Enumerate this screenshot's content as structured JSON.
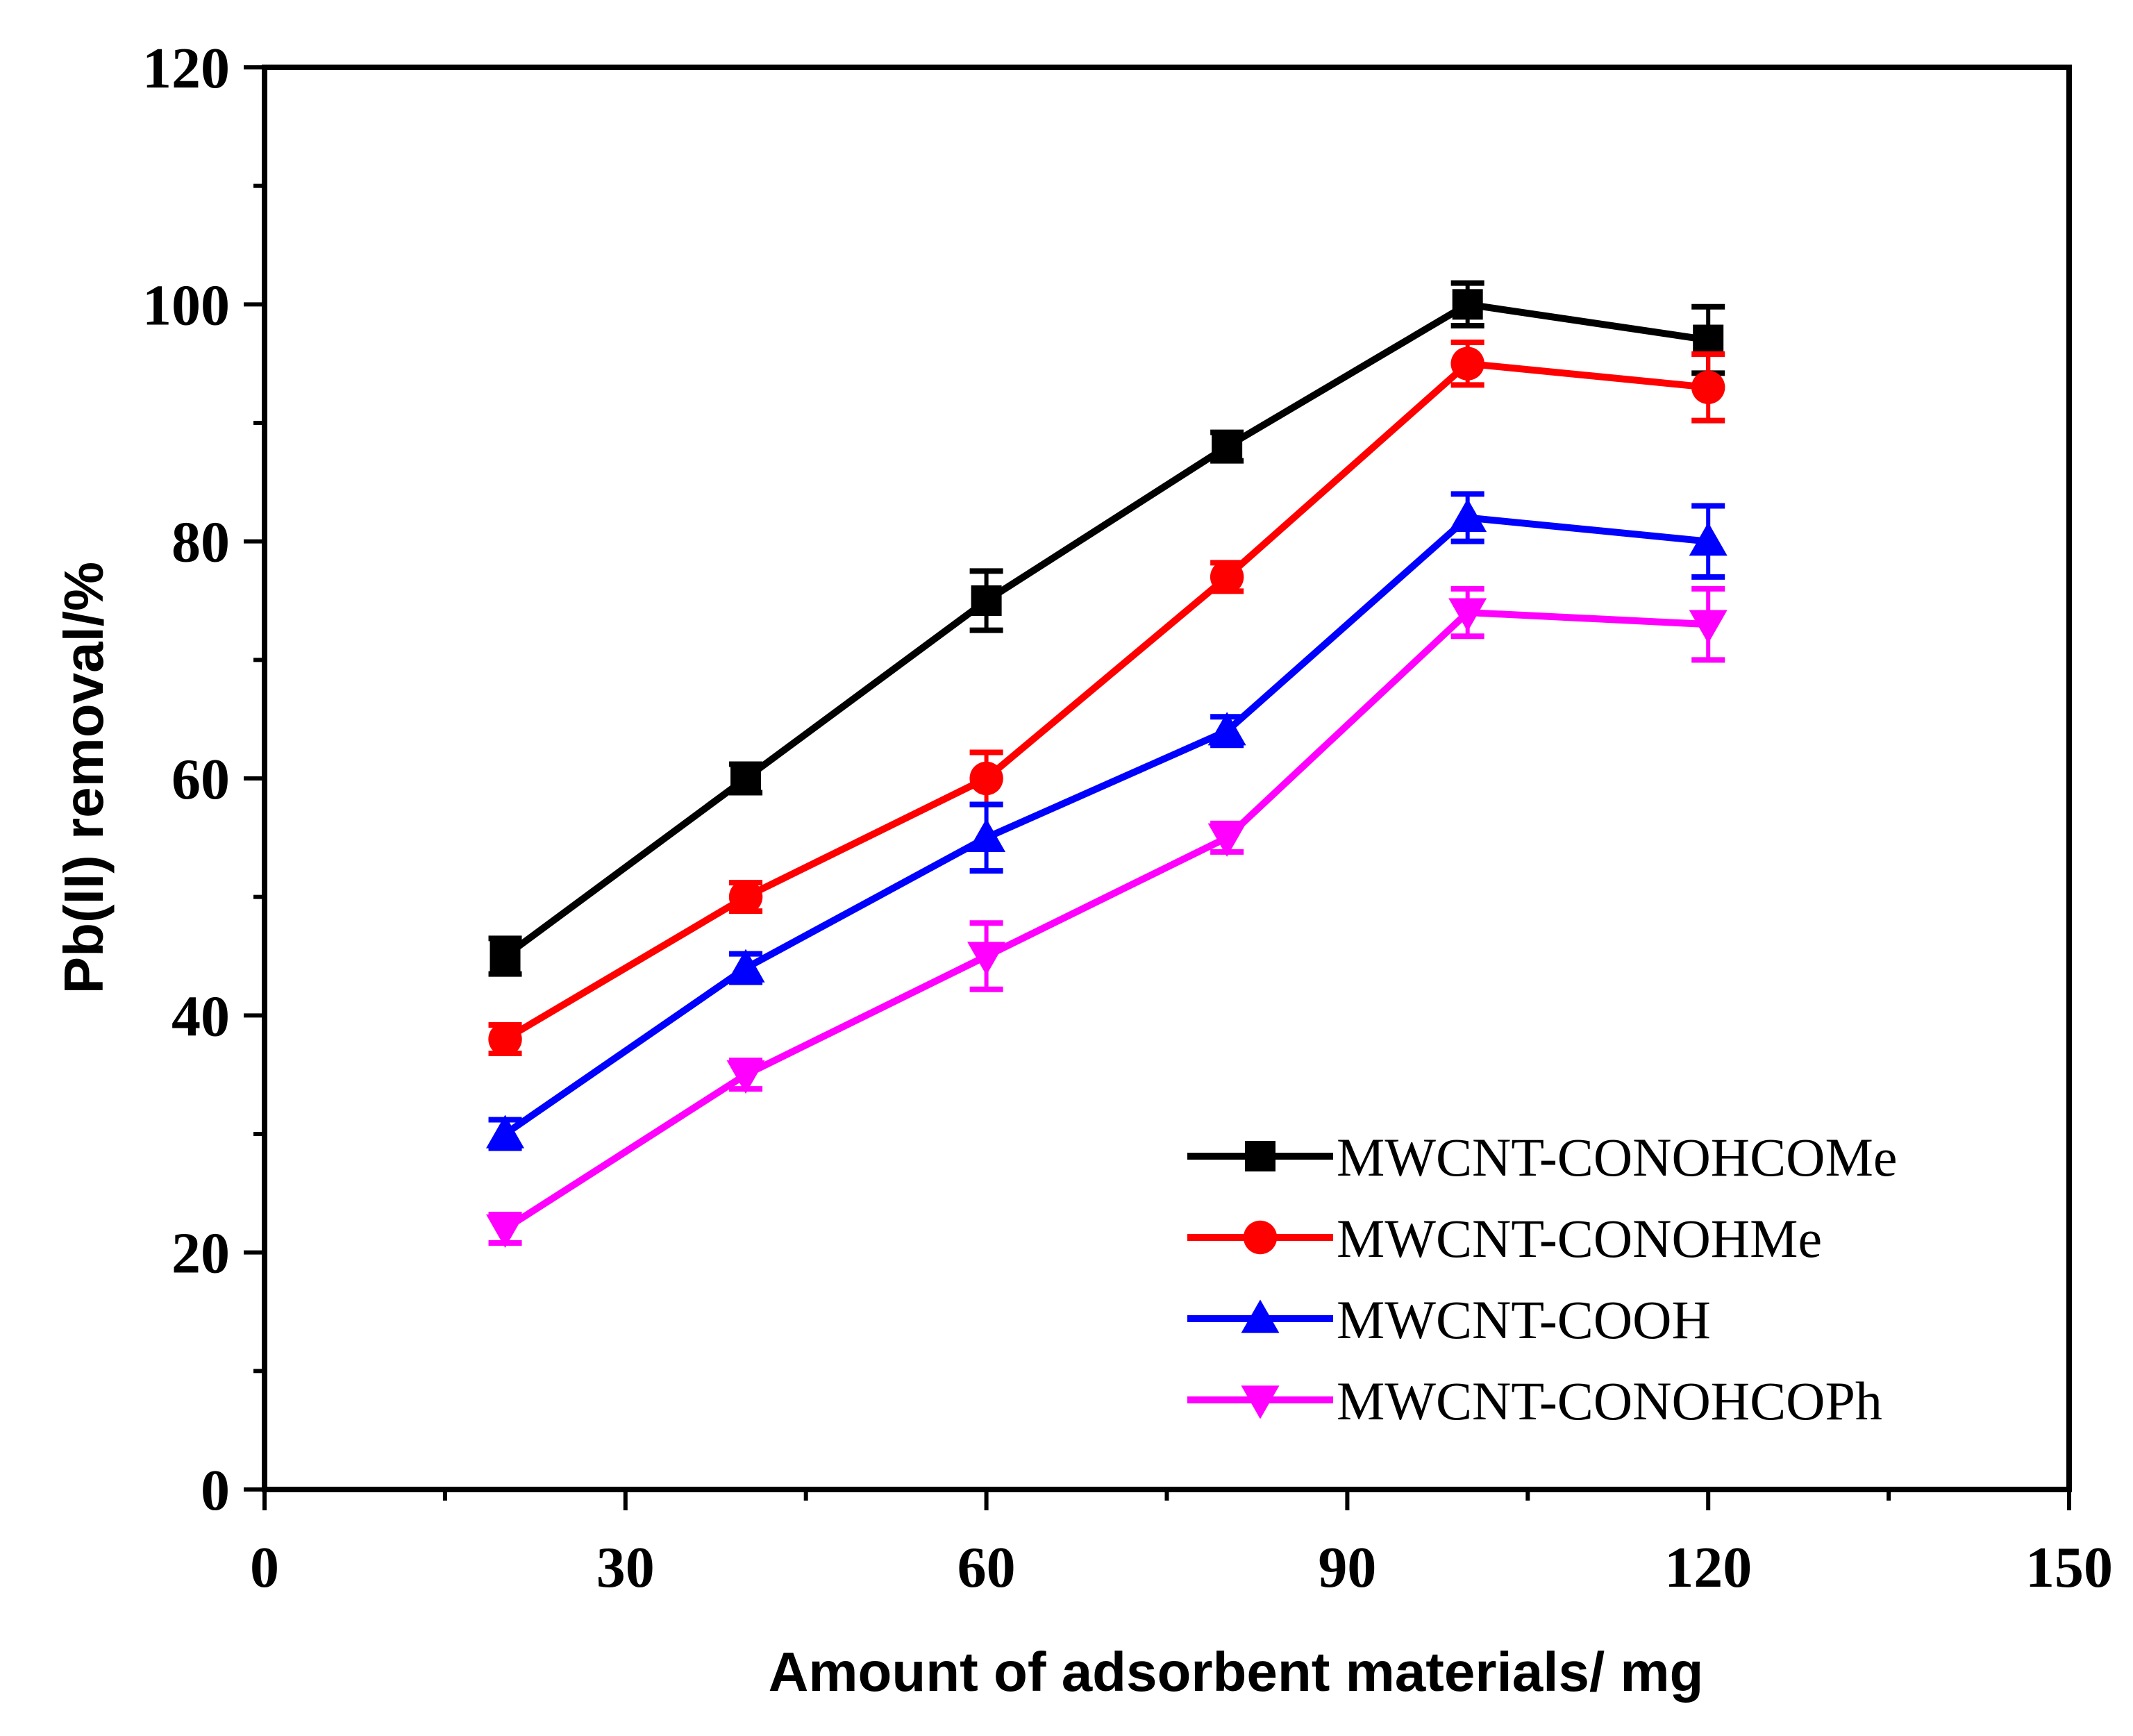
{
  "chart_data": {
    "type": "line",
    "title": "",
    "xlabel": "Amount of adsorbent materials/ mg",
    "ylabel": "Pb(II) removal/%",
    "xlim": [
      0,
      150
    ],
    "ylim": [
      0,
      120
    ],
    "xticks": [
      0,
      30,
      60,
      90,
      120,
      150
    ],
    "yticks": [
      0,
      20,
      40,
      60,
      80,
      100,
      120
    ],
    "xtick_labels": [
      "0",
      "30",
      "60",
      "90",
      "120",
      "150"
    ],
    "ytick_labels": [
      "0",
      "20",
      "40",
      "60",
      "80",
      "100",
      "120"
    ],
    "x": [
      20,
      40,
      60,
      80,
      100,
      120
    ],
    "legend_position": "bottom-right",
    "series": [
      {
        "name": "MWCNT-CONOHCOMe",
        "color": "#000000",
        "marker": "square",
        "values": [
          45,
          60,
          75,
          88,
          100,
          97
        ],
        "errors": [
          1.5,
          1.2,
          2.5,
          1.2,
          1.8,
          2.8
        ]
      },
      {
        "name": "MWCNT-CONOHMe",
        "color": "#ff0000",
        "marker": "circle",
        "values": [
          38,
          50,
          60,
          77,
          95,
          93
        ],
        "errors": [
          1.2,
          1.2,
          2.2,
          1.2,
          1.8,
          2.8
        ]
      },
      {
        "name": "MWCNT-COOH",
        "color": "#0000ff",
        "marker": "triangle-up",
        "values": [
          30,
          44,
          55,
          64,
          82,
          80
        ],
        "errors": [
          1.2,
          1.2,
          2.8,
          1.2,
          2.0,
          3.0
        ]
      },
      {
        "name": "MWCNT-CONOHCOPh",
        "color": "#ff00ff",
        "marker": "triangle-down",
        "values": [
          22,
          35,
          45,
          55,
          74,
          73
        ],
        "errors": [
          1.2,
          1.2,
          2.8,
          1.2,
          2.0,
          3.0
        ]
      }
    ]
  }
}
